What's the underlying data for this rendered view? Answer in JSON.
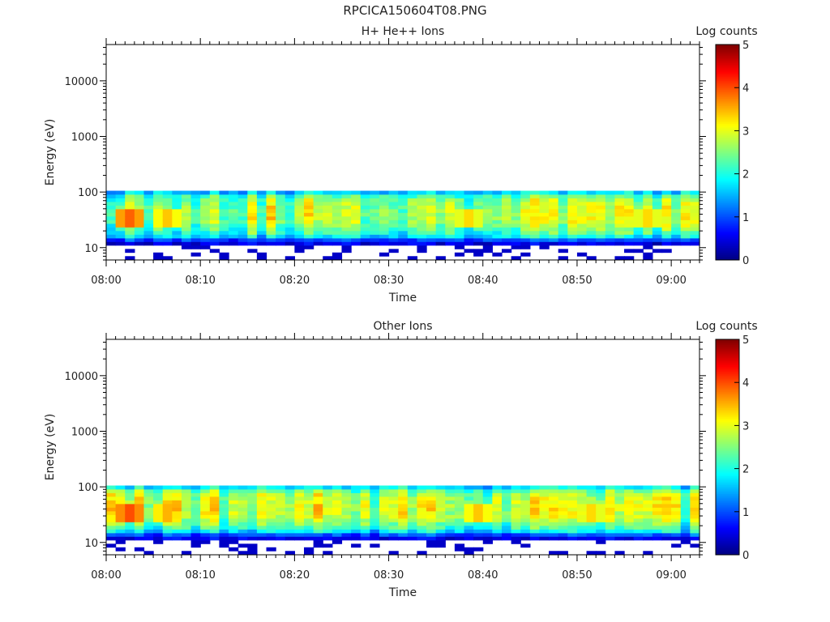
{
  "figure": {
    "title": "RPCICA150604T08.PNG"
  },
  "colors": {
    "colormap": "jet",
    "axis": "#000000",
    "background": "#ffffff"
  },
  "chart_data": [
    {
      "type": "heatmap",
      "title": "H+ He++ Ions",
      "xlabel": "Time",
      "ylabel": "Energy (eV)",
      "y_scale": "log",
      "ylim": [
        6,
        45000
      ],
      "xlim": [
        "08:00",
        "09:03"
      ],
      "x_ticks": [
        "08:00",
        "08:10",
        "08:20",
        "08:30",
        "08:40",
        "08:50",
        "09:00"
      ],
      "y_ticks": [
        "10",
        "100",
        "1000",
        "10000"
      ],
      "colorbar": {
        "label": "Log counts",
        "range": [
          0,
          5
        ],
        "ticks": [
          "0",
          "1",
          "2",
          "3",
          "4",
          "5"
        ]
      },
      "energy_levels_eV": [
        6.5,
        7.6,
        8.8,
        10.2,
        11.9,
        13.8,
        16.0,
        18.7,
        21.7,
        25.2,
        29.3,
        34.1,
        39.6,
        46.1,
        53.6,
        62.3,
        72.4,
        84.2,
        97.9
      ],
      "time_bin_minutes": 1,
      "profile_log_counts": [
        0.3,
        0.3,
        0.3,
        0.35,
        0.5,
        1.0,
        1.8,
        2.2,
        2.4,
        2.6,
        2.75,
        2.8,
        2.8,
        2.8,
        2.75,
        2.7,
        2.6,
        2.3,
        1.7
      ],
      "hotspots": [
        {
          "time": "08:02",
          "log_counts": 3.9
        },
        {
          "time": "08:06",
          "log_counts": 3.4
        },
        {
          "time": "08:38",
          "log_counts": 3.3
        },
        {
          "time": "08:57",
          "log_counts": 3.3
        }
      ]
    },
    {
      "type": "heatmap",
      "title": "Other Ions",
      "xlabel": "Time",
      "ylabel": "Energy (eV)",
      "y_scale": "log",
      "ylim": [
        6,
        45000
      ],
      "xlim": [
        "08:00",
        "09:03"
      ],
      "x_ticks": [
        "08:00",
        "08:10",
        "08:20",
        "08:30",
        "08:40",
        "08:50",
        "09:00"
      ],
      "y_ticks": [
        "10",
        "100",
        "1000",
        "10000"
      ],
      "colorbar": {
        "label": "Log counts",
        "range": [
          0,
          5
        ],
        "ticks": [
          "0",
          "1",
          "2",
          "3",
          "4",
          "5"
        ]
      },
      "energy_levels_eV": [
        6.5,
        7.6,
        8.8,
        10.2,
        11.9,
        13.8,
        16.0,
        18.7,
        21.7,
        25.2,
        29.3,
        34.1,
        39.6,
        46.1,
        53.6,
        62.3,
        72.4,
        84.2,
        97.9
      ],
      "time_bin_minutes": 1,
      "profile_log_counts": [
        0.3,
        0.3,
        0.3,
        0.35,
        0.5,
        1.0,
        1.8,
        2.2,
        2.4,
        2.6,
        2.8,
        2.85,
        2.9,
        2.9,
        2.85,
        2.8,
        2.7,
        2.4,
        1.8
      ],
      "hotspots": [
        {
          "time": "08:02",
          "log_counts": 4.0
        },
        {
          "time": "08:06",
          "log_counts": 3.5
        },
        {
          "time": "08:39",
          "log_counts": 3.4
        },
        {
          "time": "08:51",
          "log_counts": 3.3
        }
      ]
    }
  ]
}
